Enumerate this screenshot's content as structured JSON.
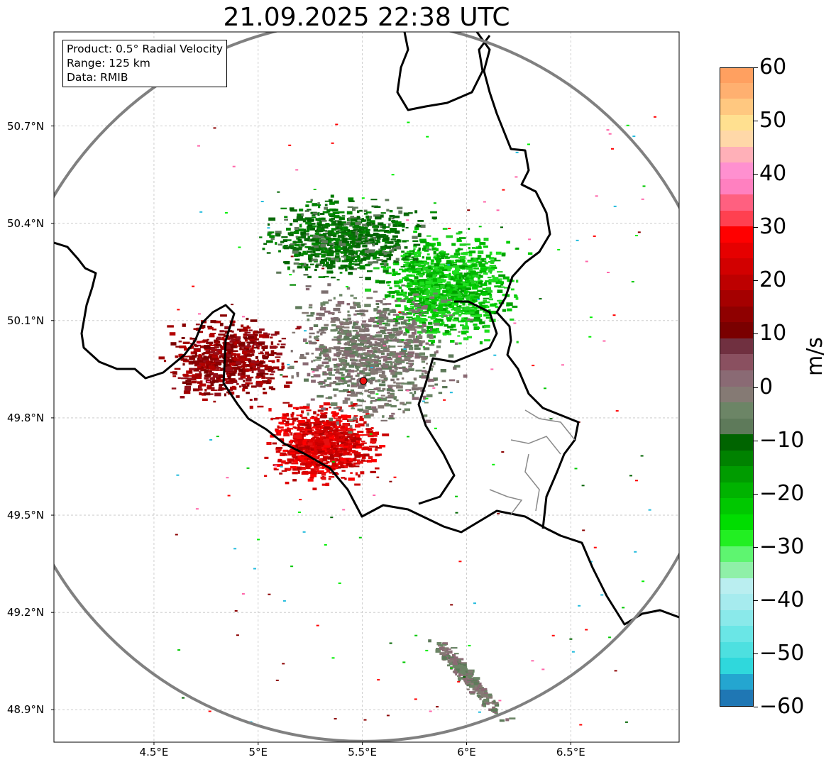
{
  "title": "21.09.2025 22:38 UTC",
  "info_box": {
    "product": "Product: 0.5° Radial Velocity",
    "range": "Range: 125 km",
    "data": "Data: RMIB"
  },
  "map": {
    "lon_range": [
      4.02,
      7.02
    ],
    "lat_range": [
      48.8,
      50.99
    ],
    "radar_site": {
      "lon": 5.505,
      "lat": 49.914
    },
    "range_circle_km": 125,
    "grid": true,
    "lat_ticks": [
      {
        "value": 50.7,
        "label": "50.7°N"
      },
      {
        "value": 50.4,
        "label": "50.4°N"
      },
      {
        "value": 50.1,
        "label": "50.1°N"
      },
      {
        "value": 49.8,
        "label": "49.8°N"
      },
      {
        "value": 49.5,
        "label": "49.5°N"
      },
      {
        "value": 49.2,
        "label": "49.2°N"
      },
      {
        "value": 48.9,
        "label": "48.9°N"
      }
    ],
    "lon_ticks": [
      {
        "value": 4.5,
        "label": "4.5°E"
      },
      {
        "value": 5.0,
        "label": "5°E"
      },
      {
        "value": 5.5,
        "label": "5.5°E"
      },
      {
        "value": 6.0,
        "label": "6°E"
      },
      {
        "value": 6.5,
        "label": "6.5°E"
      }
    ],
    "echo_regions": [
      {
        "type": "receding-red",
        "center": [
          5.3,
          49.72
        ],
        "velocity_ms": 22
      },
      {
        "type": "dark-red",
        "center": [
          4.85,
          49.98
        ],
        "velocity_ms": 12
      },
      {
        "type": "approaching-green",
        "center": [
          5.9,
          50.2
        ],
        "velocity_ms": -20
      },
      {
        "type": "dark-green",
        "center": [
          5.4,
          50.35
        ],
        "velocity_ms": -10
      },
      {
        "type": "near-zero",
        "center": [
          5.55,
          50.0
        ],
        "velocity_ms": 0
      },
      {
        "type": "near-zero-strip",
        "center": [
          6.0,
          49.0
        ],
        "velocity_ms": -2
      }
    ]
  },
  "colorbar": {
    "label": "m/s",
    "min": -60,
    "max": 60,
    "ticks": [
      {
        "value": 60,
        "label": "60"
      },
      {
        "value": 50,
        "label": "50"
      },
      {
        "value": 40,
        "label": "40"
      },
      {
        "value": 30,
        "label": "30"
      },
      {
        "value": 20,
        "label": "20"
      },
      {
        "value": 10,
        "label": "10"
      },
      {
        "value": 0,
        "label": "0"
      },
      {
        "value": -10,
        "label": "−10"
      },
      {
        "value": -20,
        "label": "−20"
      },
      {
        "value": -30,
        "label": "−30"
      },
      {
        "value": -40,
        "label": "−40"
      },
      {
        "value": -50,
        "label": "−50"
      },
      {
        "value": -60,
        "label": "−60"
      }
    ],
    "colors_bottom_to_top": [
      "#1f77b4",
      "#24a6d0",
      "#2fd8dc",
      "#4de0e0",
      "#6ae6e6",
      "#8ae9ea",
      "#a6ebee",
      "#baeef0",
      "#8ff0a8",
      "#5ef570",
      "#22ef22",
      "#00dd00",
      "#00c800",
      "#00b300",
      "#009c00",
      "#008200",
      "#006400",
      "#5e7a5a",
      "#6c8566",
      "#857a74",
      "#8a6a74",
      "#8a5060",
      "#703040",
      "#7a0000",
      "#8f0000",
      "#a50000",
      "#bd0000",
      "#d20000",
      "#e60000",
      "#ff0000",
      "#ff4050",
      "#ff6080",
      "#ff80c0",
      "#ff90d0",
      "#ffb0b8",
      "#ffd8a8",
      "#ffe090",
      "#ffc880",
      "#ffb070",
      "#ffa060"
    ]
  }
}
